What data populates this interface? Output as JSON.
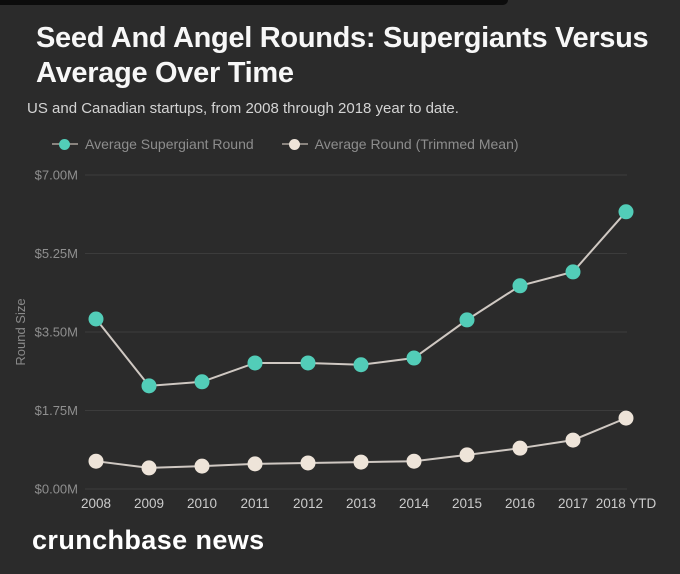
{
  "page": {
    "title": "Seed And Angel Rounds: Supergiants Versus Average Over Time",
    "subtitle": "US and Canadian startups, from 2008 through 2018 year to date.",
    "logo": "crunchbase news"
  },
  "colors": {
    "background": "#2b2b2b",
    "title_text": "#f7f7f7",
    "subtitle_text": "#d4d4d4",
    "legend_text": "#8d8d8d",
    "y_axis_text": "#8f8f8f",
    "x_axis_text": "#cbcbcb",
    "gridline": "#3c3c3c",
    "connector_line": "#cfc8c2",
    "supergiant_series": "#52cdb8",
    "average_series": "#eee4d9",
    "logo_text": "#ffffff"
  },
  "chart_data": {
    "type": "line",
    "title": "Seed And Angel Rounds: Supergiants Versus Average Over Time",
    "subtitle": "US and Canadian startups, from 2008 through 2018 year to date.",
    "xlabel": "",
    "ylabel": "Round Size",
    "ylim": [
      0,
      7
    ],
    "ytick_values": [
      0,
      1.75,
      3.5,
      5.25,
      7
    ],
    "ytick_labels": [
      "$0.00M",
      "$1.75M",
      "$3.50M",
      "$5.25M",
      "$7.00M"
    ],
    "grid": true,
    "legend_position": "top",
    "categories": [
      "2008",
      "2009",
      "2010",
      "2011",
      "2012",
      "2013",
      "2014",
      "2015",
      "2016",
      "2017",
      "2018 YTD"
    ],
    "series": [
      {
        "name": "Average Supergiant Round",
        "color": "#52cdb8",
        "values": [
          3.79,
          2.3,
          2.39,
          2.81,
          2.81,
          2.77,
          2.92,
          3.77,
          4.53,
          4.84,
          6.18
        ]
      },
      {
        "name": "Average Round (Trimmed Mean)",
        "color": "#eee4d9",
        "values": [
          0.62,
          0.47,
          0.51,
          0.56,
          0.58,
          0.6,
          0.62,
          0.76,
          0.91,
          1.09,
          1.58
        ]
      }
    ],
    "line_color": "#cfc8c2"
  }
}
